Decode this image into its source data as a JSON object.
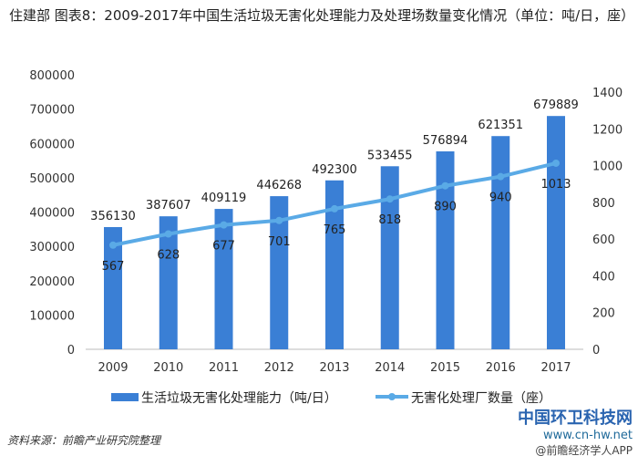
{
  "title": "住建部  图表8：2009-2017年中国生活垃圾无害化处理能力及处理场数量变化情况（单位：吨/日，座）",
  "source": "资料来源：前瞻产业研究院整理",
  "watermark": {
    "site_name": "中国环卫科技网",
    "site_url": "www.cn-hw.net",
    "app": "@前瞻经济学人APP"
  },
  "colors": {
    "bar": "#3a7fd5",
    "line": "#5aaae6"
  },
  "chart_data": {
    "type": "bar+line",
    "title": "住建部  图表8：2009-2017年中国生活垃圾无害化处理能力及处理场数量变化情况（单位：吨/日，座）",
    "categories": [
      "2009",
      "2010",
      "2011",
      "2012",
      "2013",
      "2014",
      "2015",
      "2016",
      "2017"
    ],
    "series": [
      {
        "name": "生活垃圾无害化处理能力（吨/日）",
        "type": "bar",
        "axis": "left",
        "values": [
          356130,
          387607,
          409119,
          446268,
          492300,
          533455,
          576894,
          621351,
          679889
        ]
      },
      {
        "name": "无害化处理厂数量（座）",
        "type": "line",
        "axis": "right",
        "values": [
          567,
          628,
          677,
          701,
          765,
          818,
          890,
          940,
          1013
        ]
      }
    ],
    "left_axis": {
      "range": [
        0,
        800000
      ],
      "ticks": [
        "0",
        "100000",
        "200000",
        "300000",
        "400000",
        "500000",
        "600000",
        "700000",
        "800000"
      ]
    },
    "right_axis": {
      "range": [
        0,
        1400
      ],
      "ticks": [
        "0",
        "200",
        "400",
        "600",
        "800",
        "1000",
        "1200",
        "1400"
      ]
    },
    "grid": false,
    "legend": "bottom"
  }
}
